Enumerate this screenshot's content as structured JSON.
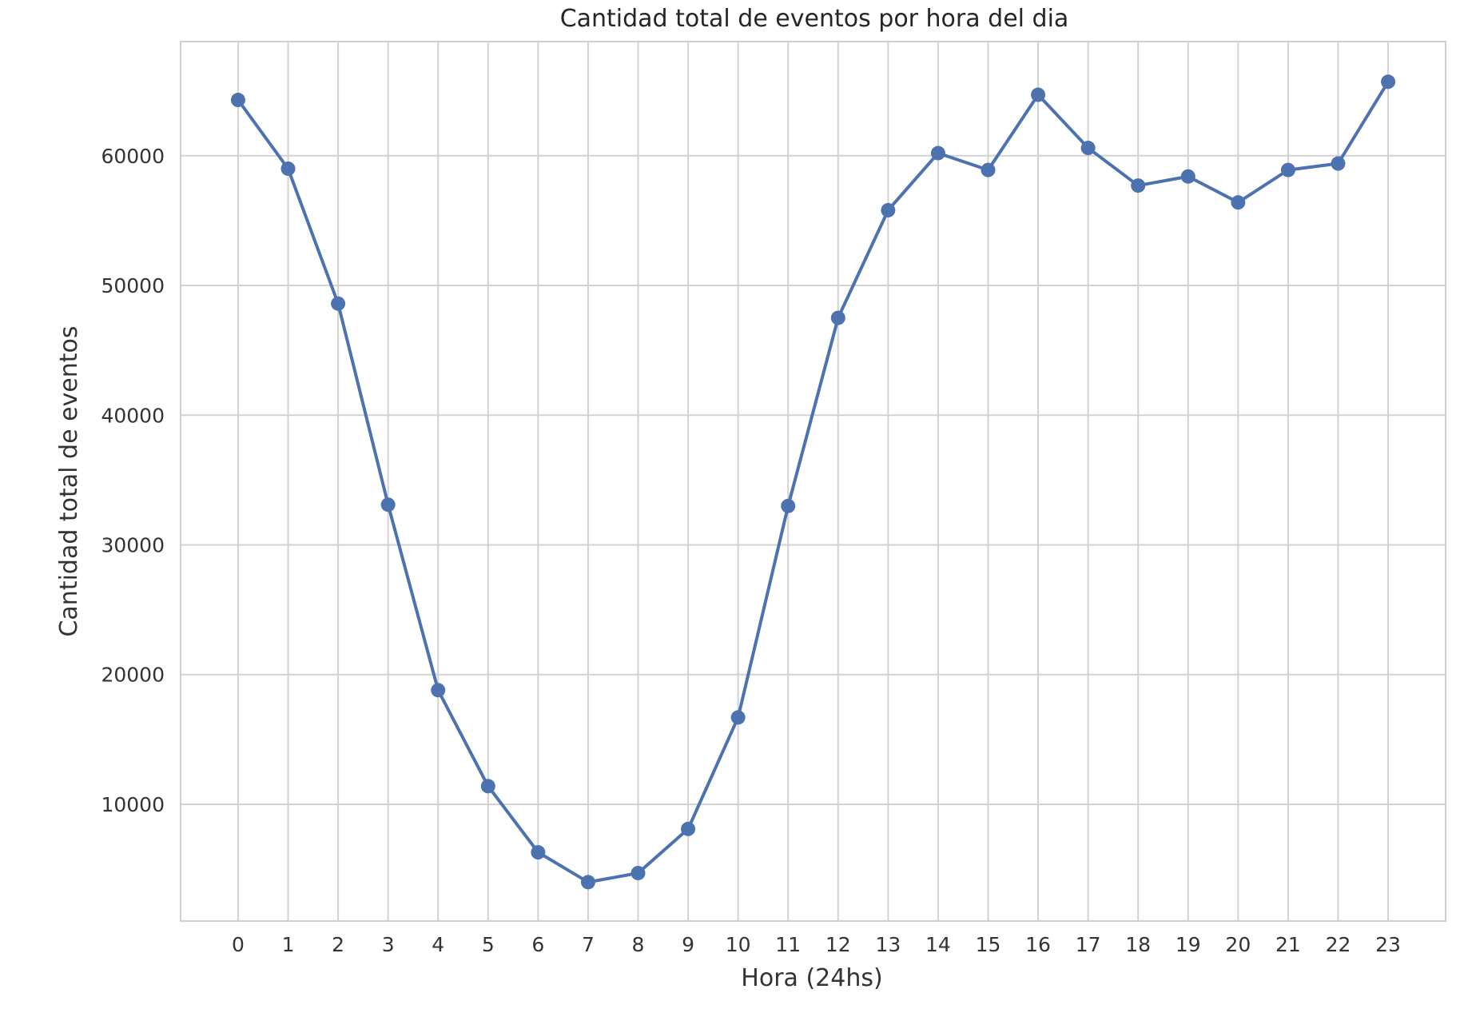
{
  "chart_data": {
    "type": "line",
    "title": "Cantidad total de eventos por hora del dia",
    "xlabel": "Hora (24hs)",
    "ylabel": "Cantidad total de eventos",
    "x": [
      0,
      1,
      2,
      3,
      4,
      5,
      6,
      7,
      8,
      9,
      10,
      11,
      12,
      13,
      14,
      15,
      16,
      17,
      18,
      19,
      20,
      21,
      22,
      23
    ],
    "x_tick_labels": [
      "0",
      "1",
      "2",
      "3",
      "4",
      "5",
      "6",
      "7",
      "8",
      "9",
      "10",
      "11",
      "12",
      "13",
      "14",
      "15",
      "16",
      "17",
      "18",
      "19",
      "20",
      "21",
      "22",
      "23"
    ],
    "series": [
      {
        "values": [
          64300,
          59000,
          48600,
          33100,
          18800,
          11400,
          6300,
          4000,
          4700,
          8100,
          16700,
          33000,
          47500,
          55800,
          60200,
          58900,
          64700,
          60600,
          57700,
          58400,
          56400,
          58900,
          59400,
          65700
        ],
        "color": "#4c72b0",
        "marker": "circle"
      }
    ],
    "y_ticks": [
      10000,
      20000,
      30000,
      40000,
      50000,
      60000
    ],
    "y_tick_labels": [
      "10000",
      "20000",
      "30000",
      "40000",
      "50000",
      "60000"
    ],
    "xlim": [
      -1.15,
      24.15
    ],
    "ylim": [
      1000,
      68800
    ],
    "grid": true,
    "legend": "none",
    "colors": {
      "line": "#4c72b0",
      "grid": "#d2d2d2",
      "text": "#333333"
    }
  }
}
